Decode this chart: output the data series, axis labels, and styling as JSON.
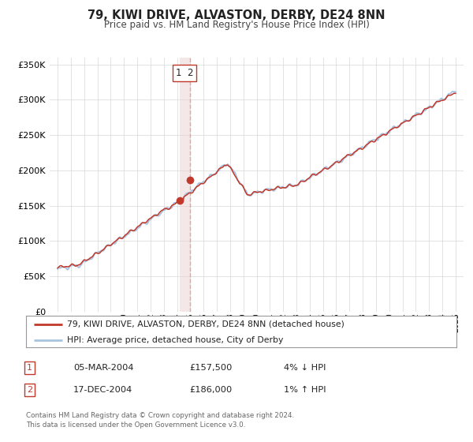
{
  "title": "79, KIWI DRIVE, ALVASTON, DERBY, DE24 8NN",
  "subtitle": "Price paid vs. HM Land Registry's House Price Index (HPI)",
  "legend_line1": "79, KIWI DRIVE, ALVASTON, DERBY, DE24 8NN (detached house)",
  "legend_line2": "HPI: Average price, detached house, City of Derby",
  "transaction1_date": "05-MAR-2004",
  "transaction1_price": "£157,500",
  "transaction1_hpi": "4% ↓ HPI",
  "transaction2_date": "17-DEC-2004",
  "transaction2_price": "£186,000",
  "transaction2_hpi": "1% ↑ HPI",
  "footer": "Contains HM Land Registry data © Crown copyright and database right 2024.\nThis data is licensed under the Open Government Licence v3.0.",
  "hpi_color": "#a8c4e0",
  "price_color": "#c0392b",
  "dot_color": "#c0392b",
  "vline_color": "#e8a0a0",
  "box_color": "#c0392b",
  "span_color": "#e8d0d0",
  "ylim": [
    0,
    360000
  ],
  "yticks": [
    0,
    50000,
    100000,
    150000,
    200000,
    250000,
    300000,
    350000
  ],
  "transaction1_x": 2004.18,
  "transaction1_y": 157500,
  "transaction2_x": 2004.96,
  "transaction2_y": 186000,
  "xlim_left": 1994.4,
  "xlim_right": 2025.6
}
